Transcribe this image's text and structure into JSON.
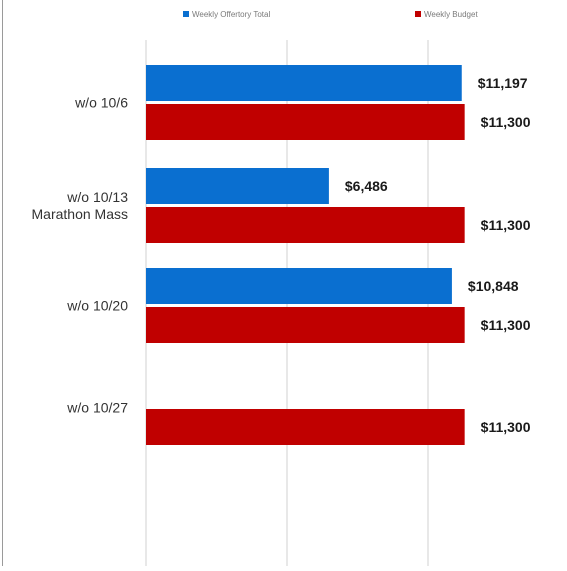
{
  "chart_data": {
    "type": "bar",
    "orientation": "horizontal",
    "categories": [
      "w/o 10/6",
      "w/o 10/13\nMarathon Mass",
      "w/o 10/20",
      "w/o 10/27"
    ],
    "series": [
      {
        "name": "Weekly Offertory Total",
        "color": "#0a6fd0",
        "values": [
          11197,
          6486,
          10848,
          null
        ]
      },
      {
        "name": "Weekly Budget",
        "color": "#c00000",
        "values": [
          11300,
          11300,
          11300,
          11300
        ]
      }
    ],
    "data_labels": [
      [
        "$11,197",
        "$6,486",
        "$10,848",
        ""
      ],
      [
        "$11,300",
        "$11,300",
        "$11,300",
        "$11,300"
      ]
    ],
    "xlim": [
      0,
      15750
    ],
    "grid": true,
    "legend": "top"
  }
}
